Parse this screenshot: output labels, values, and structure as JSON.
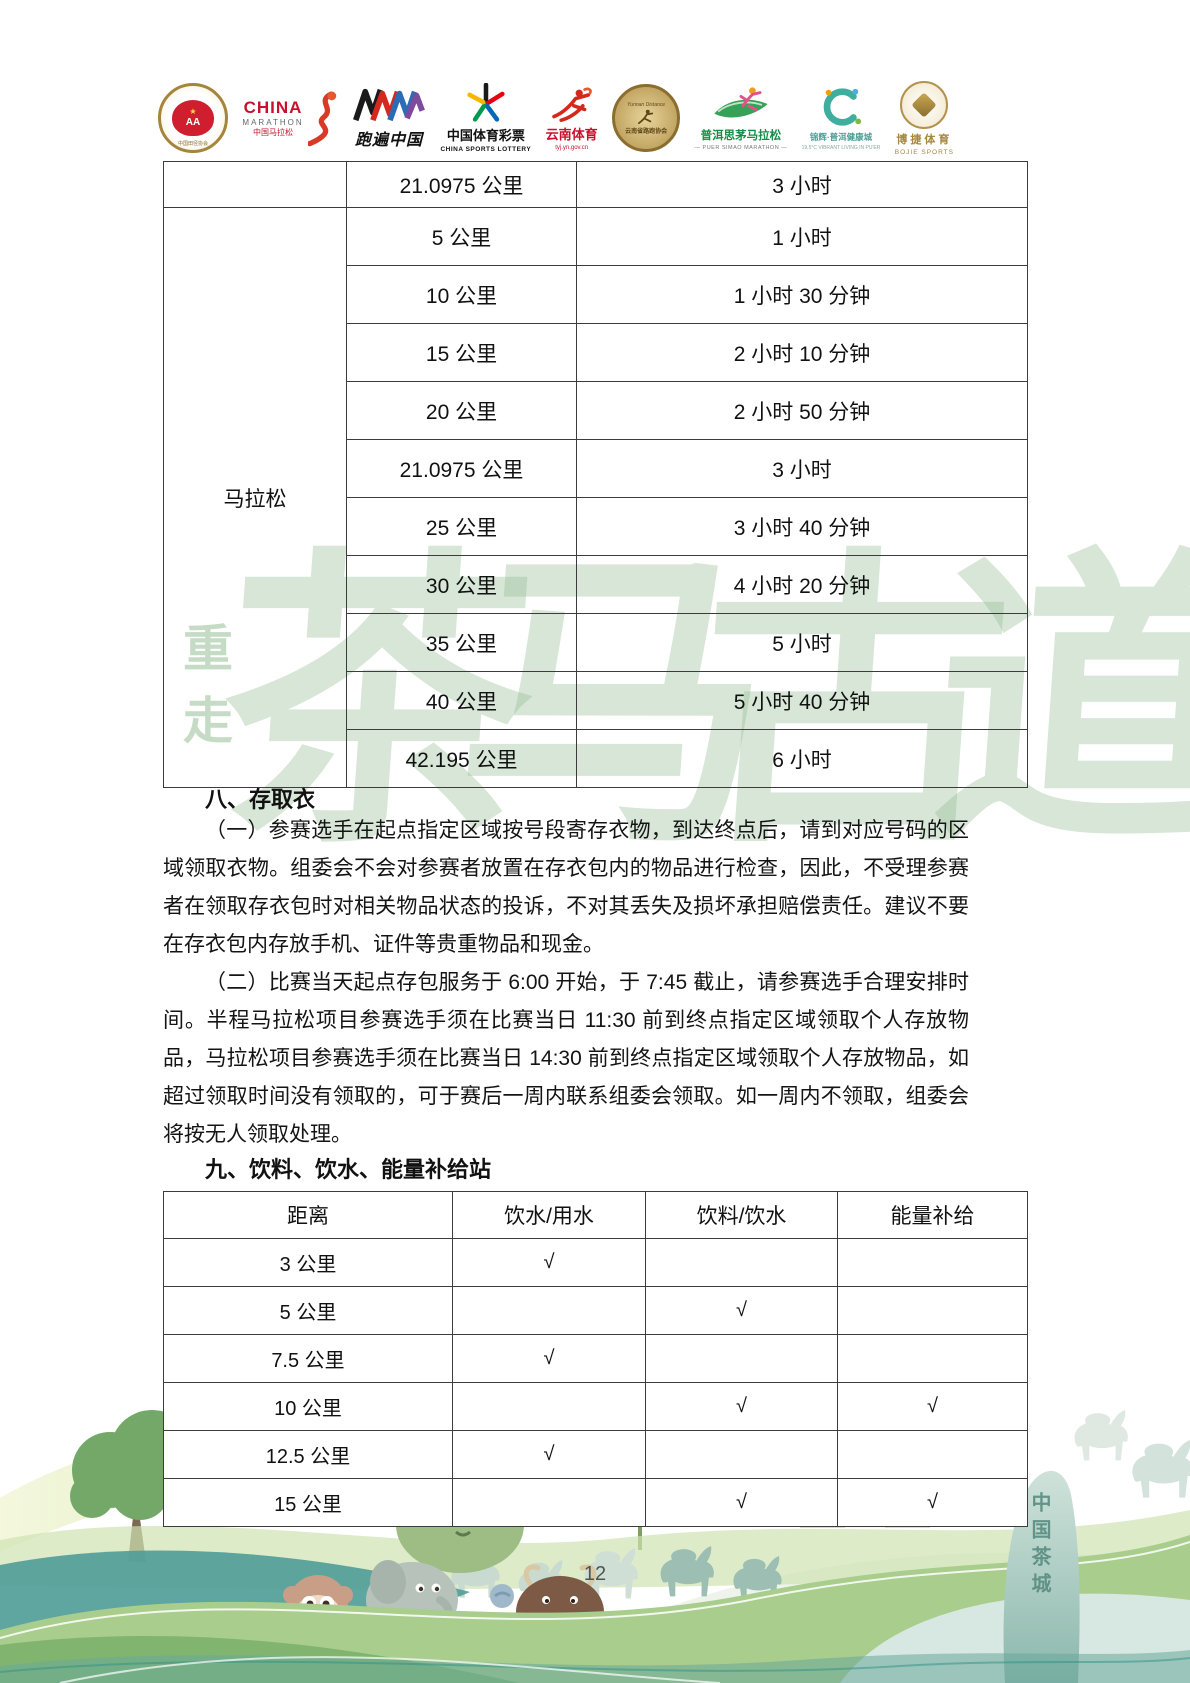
{
  "page": {
    "number": "12"
  },
  "header": {
    "logos": [
      {
        "id": "chinese-athletics-association",
        "label": "中国田径协会",
        "sublabel": "CHINESE ATHLETICS ASSOCIATION",
        "accent": "#cf1f2e"
      },
      {
        "id": "china-marathon",
        "label": "CHINA",
        "sublabel": "MARATHON",
        "sublabel2": "中国马拉松",
        "accent": "#c8102e"
      },
      {
        "id": "run-across-china",
        "label": "跑遍中国",
        "sublabel": "",
        "accent": "#1a1a1a"
      },
      {
        "id": "china-sports-lottery",
        "label": "中国体育彩票",
        "sublabel": "CHINA SPORTS LOTTERY",
        "accent": "#e60012"
      },
      {
        "id": "yunnan-sports",
        "label": "云南体育",
        "sublabel": "tyj.yn.gov.cn",
        "accent": "#d5281b"
      },
      {
        "id": "yunnan-distance-running-association",
        "label": "云南省路跑协会",
        "sublabel": "Yunnan Distance",
        "accent": "#b3924c"
      },
      {
        "id": "puer-simao-marathon",
        "label": "普洱思茅马拉松",
        "sublabel": "— PUER SIMAO MARATHON —",
        "accent": "#168c44"
      },
      {
        "id": "puer-health-city",
        "label": "锦辉·普洱健康城",
        "sublabel": "19.5°C VIBRANT LIVING IN PU'ER",
        "accent": "#3fae9f"
      },
      {
        "id": "bojie-sports",
        "label": "博捷体育",
        "sublabel": "BOJIE SPORTS",
        "accent": "#a5873d"
      }
    ]
  },
  "watermark": {
    "vertical": "重走",
    "main": "茶马古道",
    "color": "#97be96"
  },
  "table1": {
    "pre_rows": [
      [
        "",
        "21.0975 公里",
        "3 小时"
      ]
    ],
    "group_label": "马拉松",
    "group_rows": [
      [
        "5 公里",
        "1 小时"
      ],
      [
        "10 公里",
        "1 小时 30 分钟"
      ],
      [
        "15 公里",
        "2 小时 10 分钟"
      ],
      [
        "20 公里",
        "2 小时 50 分钟"
      ],
      [
        "21.0975 公里",
        "3 小时"
      ],
      [
        "25 公里",
        "3 小时 40 分钟"
      ],
      [
        "30 公里",
        "4 小时 20 分钟"
      ],
      [
        "35 公里",
        "5 小时"
      ],
      [
        "40 公里",
        "5 小时 40 分钟"
      ],
      [
        "42.195 公里",
        "6 小时"
      ]
    ]
  },
  "section8": {
    "title": "八、存取衣",
    "paragraphs": [
      "（一）参赛选手在起点指定区域按号段寄存衣物，到达终点后，请到对应号码的区域领取衣物。组委会不会对参赛者放置在存衣包内的物品进行检查，因此，不受理参赛者在领取存衣包时对相关物品状态的投诉，不对其丢失及损坏承担赔偿责任。建议不要在存衣包内存放手机、证件等贵重物品和现金。",
      "（二）比赛当天起点存包服务于 6:00 开始，于 7:45 截止，请参赛选手合理安排时间。半程马拉松项目参赛选手须在比赛当日 11:30 前到终点指定区域领取个人存放物品，马拉松项目参赛选手须在比赛当日 14:30 前到终点指定区域领取个人存放物品，如超过领取时间没有领取的，可于赛后一周内联系组委会领取。如一周内不领取，组委会将按无人领取处理。"
    ]
  },
  "section9": {
    "title": "九、饮料、饮水、能量补给站"
  },
  "table2": {
    "headers": [
      "距离",
      "饮水/用水",
      "饮料/饮水",
      "能量补给"
    ],
    "rows": [
      [
        "3 公里",
        "√",
        "",
        ""
      ],
      [
        "5 公里",
        "",
        "√",
        ""
      ],
      [
        "7.5 公里",
        "√",
        "",
        ""
      ],
      [
        "10 公里",
        "",
        "√",
        "√"
      ],
      [
        "12.5 公里",
        "√",
        "",
        ""
      ],
      [
        "15 公里",
        "",
        "√",
        "√"
      ]
    ]
  },
  "footer": {
    "monument": "中国茶城"
  }
}
